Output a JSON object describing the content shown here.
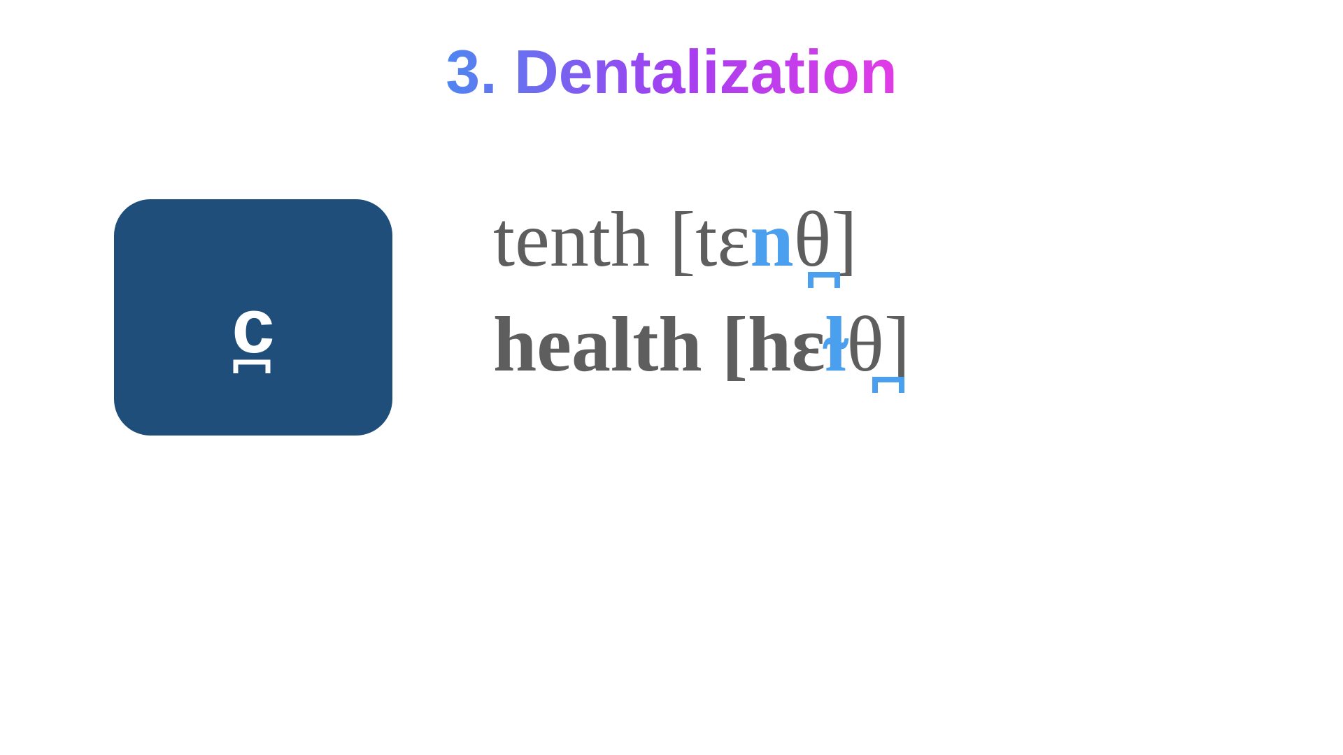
{
  "slide": {
    "title": "3. Dentalization",
    "title_gradient": [
      "#4f86f0",
      "#a33ef0",
      "#e33ce6"
    ]
  },
  "card": {
    "symbol": "c",
    "diacritic": "dental-bridge",
    "background": "#1f4e7a",
    "text_color": "#ffffff"
  },
  "examples": [
    {
      "parts": [
        {
          "text": "tenth [tɛ",
          "color": "#5e5e5e",
          "weight": "normal"
        },
        {
          "text": "n",
          "color": "#4aa0ee",
          "weight": "bold",
          "diacritic": "dental-bridge"
        },
        {
          "text": "θ]",
          "color": "#5e5e5e",
          "weight": "normal"
        }
      ]
    },
    {
      "parts": [
        {
          "text": "health [hɛ",
          "color": "#5e5e5e",
          "weight": "bold"
        },
        {
          "text": "ɫ",
          "color": "#4aa0ee",
          "weight": "bold",
          "diacritic": "dental-bridge"
        },
        {
          "text": "θ]",
          "color": "#5e5e5e",
          "weight": "normal"
        }
      ]
    }
  ]
}
